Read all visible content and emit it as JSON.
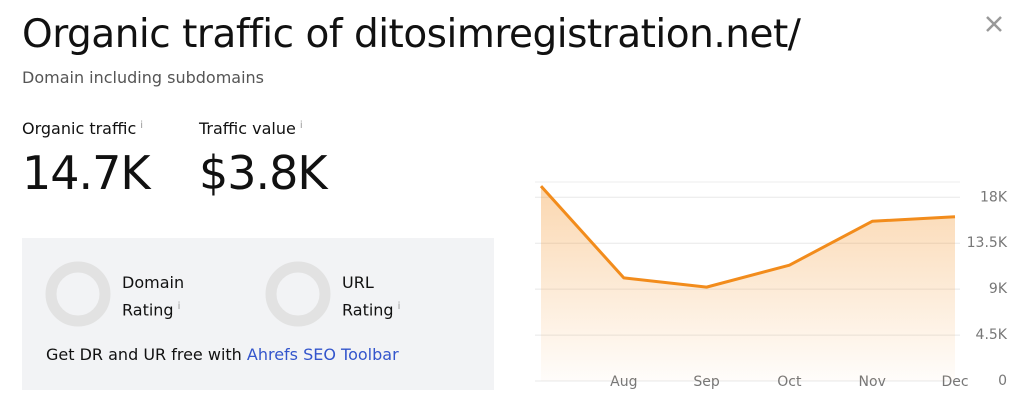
{
  "header": {
    "title": "Organic traffic of ditosimregistration.net/",
    "subtitle": "Domain including subdomains",
    "close": "×"
  },
  "info_icon": "i",
  "metrics": [
    {
      "label": "Organic traffic",
      "value": "14.7K"
    },
    {
      "label": "Traffic value",
      "value": "$3.8K"
    }
  ],
  "ratings": [
    {
      "label": "Domain Rating"
    },
    {
      "label": "URL Rating"
    }
  ],
  "promo": {
    "text": "Get DR and UR free with ",
    "link": "Ahrefs SEO Toolbar"
  },
  "chart_data": {
    "type": "line",
    "categories": [
      null,
      "Aug",
      "Sep",
      "Oct",
      "Nov",
      "Dec"
    ],
    "series": [
      {
        "name": "Organic traffic",
        "color": "#f28c1c",
        "values": [
          19100,
          10100,
          9200,
          11350,
          15650,
          16100
        ]
      }
    ],
    "ylim": [
      0,
      19500
    ],
    "yticks": [
      0,
      {
        "value": 4500,
        "label": "4.5K"
      },
      {
        "value": 9000,
        "label": "9K"
      },
      {
        "value": 13500,
        "label": "13.5K"
      },
      {
        "value": 18000,
        "label": "18K"
      }
    ],
    "grid": true
  }
}
